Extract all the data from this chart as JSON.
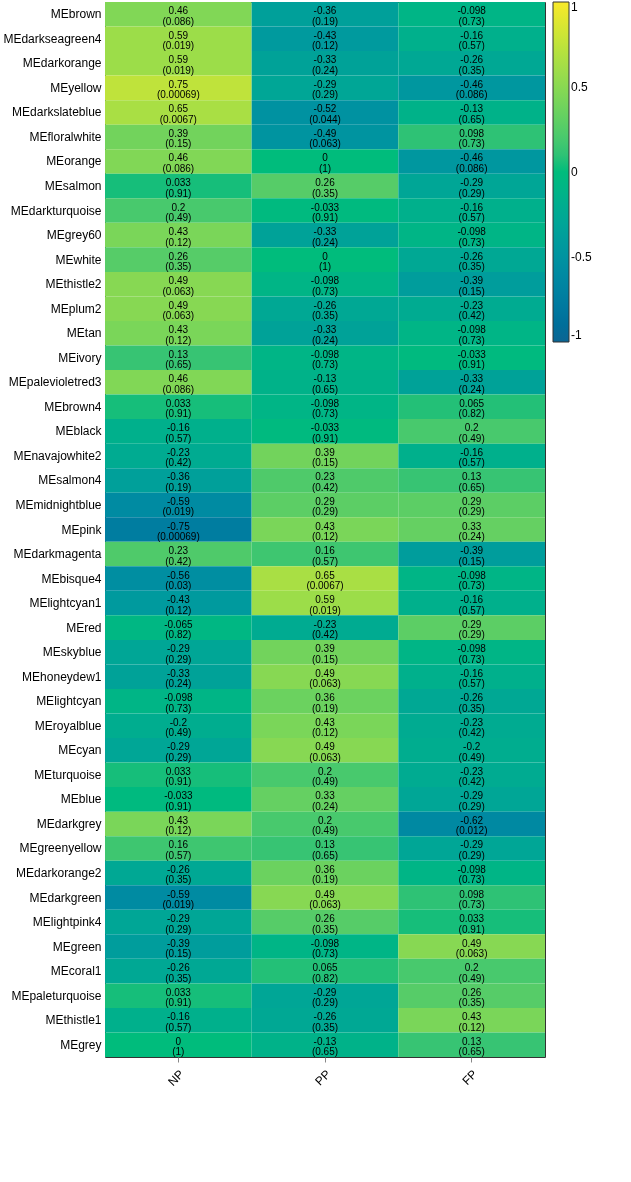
{
  "chart_data": {
    "type": "heatmap",
    "categories": [
      "NP",
      "PP",
      "FP"
    ],
    "y_categories": [
      "MEbrown",
      "MEdarkseagreen4",
      "MEdarkorange",
      "MEyellow",
      "MEdarkslateblue",
      "MEfloralwhite",
      "MEorange",
      "MEsalmon",
      "MEdarkturquoise",
      "MEgrey60",
      "MEwhite",
      "MEthistle2",
      "MEplum2",
      "MEtan",
      "MEivory",
      "MEpalevioletred3",
      "MEbrown4",
      "MEblack",
      "MEnavajowhite2",
      "MEsalmon4",
      "MEmidnightblue",
      "MEpink",
      "MEdarkmagenta",
      "MEbisque4",
      "MElightcyan1",
      "MEred",
      "MEskyblue",
      "MEhoneydew1",
      "MElightcyan",
      "MEroyalblue",
      "MEcyan",
      "MEturquoise",
      "MEblue",
      "MEdarkgrey",
      "MEgreenyellow",
      "MEdarkorange2",
      "MEdarkgreen",
      "MElightpink4",
      "MEgreen",
      "MEcoral1",
      "MEpaleturquoise",
      "MEthistle1",
      "MEgrey"
    ],
    "cells": [
      [
        0.46,
        -0.36,
        -0.098
      ],
      [
        0.59,
        -0.43,
        -0.16
      ],
      [
        0.59,
        -0.33,
        -0.26
      ],
      [
        0.75,
        -0.29,
        -0.46
      ],
      [
        0.65,
        -0.52,
        -0.13
      ],
      [
        0.39,
        -0.49,
        0.098
      ],
      [
        0.46,
        0,
        -0.46
      ],
      [
        0.033,
        0.26,
        -0.29
      ],
      [
        0.2,
        -0.033,
        -0.16
      ],
      [
        0.43,
        -0.33,
        -0.098
      ],
      [
        0.26,
        0,
        -0.26
      ],
      [
        0.49,
        -0.098,
        -0.39
      ],
      [
        0.49,
        -0.26,
        -0.23
      ],
      [
        0.43,
        -0.33,
        -0.098
      ],
      [
        0.13,
        -0.098,
        -0.033
      ],
      [
        0.46,
        -0.13,
        -0.33
      ],
      [
        0.033,
        -0.098,
        0.065
      ],
      [
        -0.16,
        -0.033,
        0.2
      ],
      [
        -0.23,
        0.39,
        -0.16
      ],
      [
        -0.36,
        0.23,
        0.13
      ],
      [
        -0.59,
        0.29,
        0.29
      ],
      [
        -0.75,
        0.43,
        0.33
      ],
      [
        0.23,
        0.16,
        -0.39
      ],
      [
        -0.56,
        0.65,
        -0.098
      ],
      [
        -0.43,
        0.59,
        -0.16
      ],
      [
        -0.065,
        -0.23,
        0.29
      ],
      [
        -0.29,
        0.39,
        -0.098
      ],
      [
        -0.33,
        0.49,
        -0.16
      ],
      [
        -0.098,
        0.36,
        -0.26
      ],
      [
        -0.2,
        0.43,
        -0.23
      ],
      [
        -0.29,
        0.49,
        -0.2
      ],
      [
        0.033,
        0.2,
        -0.23
      ],
      [
        -0.033,
        0.33,
        -0.29
      ],
      [
        0.43,
        0.2,
        -0.62
      ],
      [
        0.16,
        0.13,
        -0.29
      ],
      [
        -0.26,
        0.36,
        -0.098
      ],
      [
        -0.59,
        0.49,
        0.098
      ],
      [
        -0.29,
        0.26,
        0.033
      ],
      [
        -0.39,
        -0.098,
        0.49
      ],
      [
        -0.26,
        0.065,
        0.2
      ],
      [
        0.033,
        -0.29,
        0.26
      ],
      [
        -0.16,
        -0.26,
        0.43
      ],
      [
        0,
        -0.13,
        0.13
      ]
    ],
    "cell_labels": [
      [
        "0.46\n(0.086)",
        "-0.36\n(0.19)",
        "-0.098\n(0.73)"
      ],
      [
        "0.59\n(0.019)",
        "-0.43\n(0.12)",
        "-0.16\n(0.57)"
      ],
      [
        "0.59\n(0.019)",
        "-0.33\n(0.24)",
        "-0.26\n(0.35)"
      ],
      [
        "0.75\n(0.00069)",
        "-0.29\n(0.29)",
        "-0.46\n(0.086)"
      ],
      [
        "0.65\n(0.0067)",
        "-0.52\n(0.044)",
        "-0.13\n(0.65)"
      ],
      [
        "0.39\n(0.15)",
        "-0.49\n(0.063)",
        "0.098\n(0.73)"
      ],
      [
        "0.46\n(0.086)",
        "0\n(1)",
        "-0.46\n(0.086)"
      ],
      [
        "0.033\n(0.91)",
        "0.26\n(0.35)",
        "-0.29\n(0.29)"
      ],
      [
        "0.2\n(0.49)",
        "-0.033\n(0.91)",
        "-0.16\n(0.57)"
      ],
      [
        "0.43\n(0.12)",
        "-0.33\n(0.24)",
        "-0.098\n(0.73)"
      ],
      [
        "0.26\n(0.35)",
        "0\n(1)",
        "-0.26\n(0.35)"
      ],
      [
        "0.49\n(0.063)",
        "-0.098\n(0.73)",
        "-0.39\n(0.15)"
      ],
      [
        "0.49\n(0.063)",
        "-0.26\n(0.35)",
        "-0.23\n(0.42)"
      ],
      [
        "0.43\n(0.12)",
        "-0.33\n(0.24)",
        "-0.098\n(0.73)"
      ],
      [
        "0.13\n(0.65)",
        "-0.098\n(0.73)",
        "-0.033\n(0.91)"
      ],
      [
        "0.46\n(0.086)",
        "-0.13\n(0.65)",
        "-0.33\n(0.24)"
      ],
      [
        "0.033\n(0.91)",
        "-0.098\n(0.73)",
        "0.065\n(0.82)"
      ],
      [
        "-0.16\n(0.57)",
        "-0.033\n(0.91)",
        "0.2\n(0.49)"
      ],
      [
        "-0.23\n(0.42)",
        "0.39\n(0.15)",
        "-0.16\n(0.57)"
      ],
      [
        "-0.36\n(0.19)",
        "0.23\n(0.42)",
        "0.13\n(0.65)"
      ],
      [
        "-0.59\n(0.019)",
        "0.29\n(0.29)",
        "0.29\n(0.29)"
      ],
      [
        "-0.75\n(0.00069)",
        "0.43\n(0.12)",
        "0.33\n(0.24)"
      ],
      [
        "0.23\n(0.42)",
        "0.16\n(0.57)",
        "-0.39\n(0.15)"
      ],
      [
        "-0.56\n(0.03)",
        "0.65\n(0.0067)",
        "-0.098\n(0.73)"
      ],
      [
        "-0.43\n(0.12)",
        "0.59\n(0.019)",
        "-0.16\n(0.57)"
      ],
      [
        "-0.065\n(0.82)",
        "-0.23\n(0.42)",
        "0.29\n(0.29)"
      ],
      [
        "-0.29\n(0.29)",
        "0.39\n(0.15)",
        "-0.098\n(0.73)"
      ],
      [
        "-0.33\n(0.24)",
        "0.49\n(0.063)",
        "-0.16\n(0.57)"
      ],
      [
        "-0.098\n(0.73)",
        "0.36\n(0.19)",
        "-0.26\n(0.35)"
      ],
      [
        "-0.2\n(0.49)",
        "0.43\n(0.12)",
        "-0.23\n(0.42)"
      ],
      [
        "-0.29\n(0.29)",
        "0.49\n(0.063)",
        "-0.2\n(0.49)"
      ],
      [
        "0.033\n(0.91)",
        "0.2\n(0.49)",
        "-0.23\n(0.42)"
      ],
      [
        "-0.033\n(0.91)",
        "0.33\n(0.24)",
        "-0.29\n(0.29)"
      ],
      [
        "0.43\n(0.12)",
        "0.2\n(0.49)",
        "-0.62\n(0.012)"
      ],
      [
        "0.16\n(0.57)",
        "0.13\n(0.65)",
        "-0.29\n(0.29)"
      ],
      [
        "-0.26\n(0.35)",
        "0.36\n(0.19)",
        "-0.098\n(0.73)"
      ],
      [
        "-0.59\n(0.019)",
        "0.49\n(0.063)",
        "0.098\n(0.73)"
      ],
      [
        "-0.29\n(0.29)",
        "0.26\n(0.35)",
        "0.033\n(0.91)"
      ],
      [
        "-0.39\n(0.15)",
        "-0.098\n(0.73)",
        "0.49\n(0.063)"
      ],
      [
        "-0.26\n(0.35)",
        "0.065\n(0.82)",
        "0.2\n(0.49)"
      ],
      [
        "0.033\n(0.91)",
        "-0.29\n(0.29)",
        "0.26\n(0.35)"
      ],
      [
        "-0.16\n(0.57)",
        "-0.26\n(0.35)",
        "0.43\n(0.12)"
      ],
      [
        "0\n(1)",
        "-0.13\n(0.65)",
        "0.13\n(0.65)"
      ]
    ],
    "clim": [
      -1,
      1
    ],
    "cticks": [
      -1,
      -0.5,
      0,
      0.5,
      1
    ]
  }
}
